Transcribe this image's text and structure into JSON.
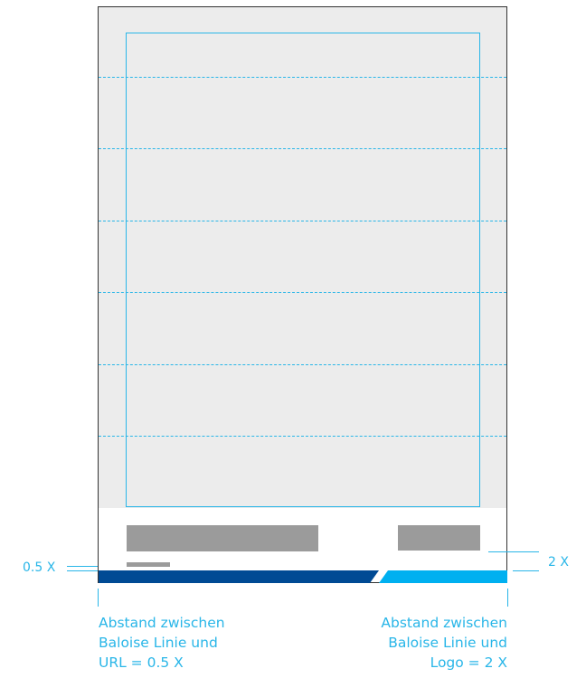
{
  "labels": {
    "left_measure": "0.5 X",
    "right_measure": "2 X"
  },
  "captions": {
    "left": [
      "Abstand zwischen",
      "Baloise Linie und",
      "URL = 0.5 X"
    ],
    "right": [
      "Abstand zwischen",
      "Baloise Linie und",
      "Logo = 2 X"
    ]
  },
  "colors": {
    "guide": "#29b6e8",
    "placeholder_gray": "#9b9b9b",
    "image_area": "#ececec",
    "baloise_dark_blue": "#004a94",
    "baloise_light_blue": "#00b0f0"
  }
}
